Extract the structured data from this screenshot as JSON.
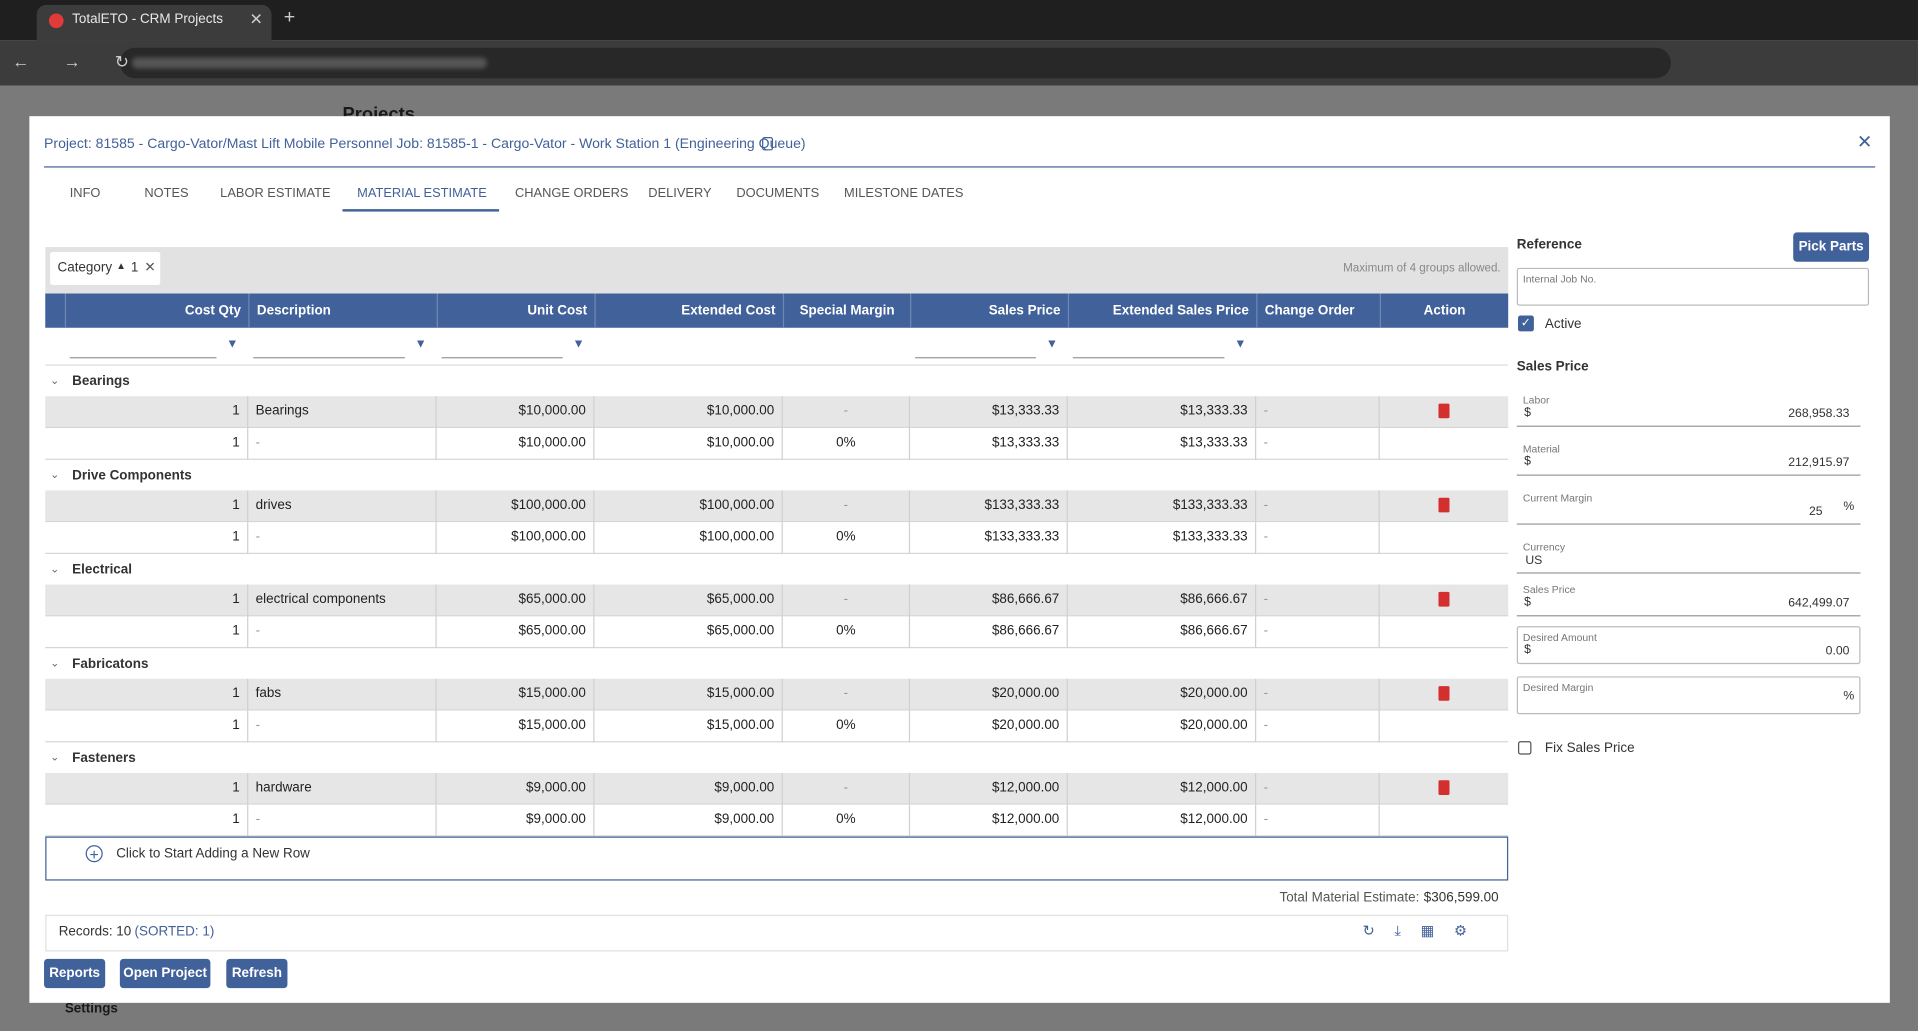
{
  "browser": {
    "tab_title": "TotalETO - CRM Projects"
  },
  "background": {
    "page_title": "Projects",
    "settings": "Settings"
  },
  "dialog": {
    "title": "Project: 81585 - Cargo-Vator/Mast Lift Mobile Personnel Job: 81585-1 - Cargo-Vator - Work Station 1 (Engineering Queue)",
    "tabs": [
      "INFO",
      "NOTES",
      "LABOR ESTIMATE",
      "MATERIAL ESTIMATE",
      "CHANGE ORDERS",
      "DELIVERY",
      "DOCUMENTS",
      "MILESTONE DATES"
    ],
    "active_tab": 3,
    "group_chip": {
      "label": "Category",
      "count": "1"
    },
    "group_note": "Maximum of 4 groups allowed.",
    "table": {
      "columns": [
        "Cost Qty",
        "Description",
        "Unit Cost",
        "Extended Cost",
        "Special Margin",
        "Sales Price",
        "Extended Sales Price",
        "Change Order",
        "Action"
      ],
      "groups": [
        {
          "name": "Bearings",
          "rows": [
            [
              "1",
              "Bearings",
              "$10,000.00",
              "$10,000.00",
              "-",
              "$13,333.33",
              "$13,333.33",
              "-"
            ],
            [
              "1",
              "-",
              "$10,000.00",
              "$10,000.00",
              "0%",
              "$13,333.33",
              "$13,333.33",
              "-"
            ]
          ]
        },
        {
          "name": "Drive Components",
          "rows": [
            [
              "1",
              "drives",
              "$100,000.00",
              "$100,000.00",
              "-",
              "$133,333.33",
              "$133,333.33",
              "-"
            ],
            [
              "1",
              "-",
              "$100,000.00",
              "$100,000.00",
              "0%",
              "$133,333.33",
              "$133,333.33",
              "-"
            ]
          ]
        },
        {
          "name": "Electrical",
          "rows": [
            [
              "1",
              "electrical components",
              "$65,000.00",
              "$65,000.00",
              "-",
              "$86,666.67",
              "$86,666.67",
              "-"
            ],
            [
              "1",
              "-",
              "$65,000.00",
              "$65,000.00",
              "0%",
              "$86,666.67",
              "$86,666.67",
              "-"
            ]
          ]
        },
        {
          "name": "Fabricatons",
          "rows": [
            [
              "1",
              "fabs",
              "$15,000.00",
              "$15,000.00",
              "-",
              "$20,000.00",
              "$20,000.00",
              "-"
            ],
            [
              "1",
              "-",
              "$15,000.00",
              "$15,000.00",
              "0%",
              "$20,000.00",
              "$20,000.00",
              "-"
            ]
          ]
        },
        {
          "name": "Fasteners",
          "rows": [
            [
              "1",
              "hardware",
              "$9,000.00",
              "$9,000.00",
              "-",
              "$12,000.00",
              "$12,000.00",
              "-"
            ],
            [
              "1",
              "-",
              "$9,000.00",
              "$9,000.00",
              "0%",
              "$12,000.00",
              "$12,000.00",
              "-"
            ]
          ]
        }
      ]
    },
    "add_row": "Click to Start Adding a New Row",
    "total": {
      "label": "Total Material Estimate:",
      "value": "$306,599.00"
    },
    "footer": {
      "records": "Records: 10",
      "sorted": "(SORTED: 1)"
    },
    "buttons": [
      "Reports",
      "Open Project",
      "Refresh"
    ],
    "side": {
      "reference": "Reference",
      "pick_parts": "Pick Parts",
      "internal_job_label": "Internal Job No.",
      "active": "Active",
      "sales_price_heading": "Sales Price",
      "fields": [
        {
          "label": "Labor",
          "prefix": "$",
          "value": "268,958.33"
        },
        {
          "label": "Material",
          "prefix": "$",
          "value": "212,915.97"
        },
        {
          "label": "Current Margin",
          "value": "25",
          "suffix": "%"
        },
        {
          "label": "Currency",
          "text": "US"
        },
        {
          "label": "Sales Price",
          "prefix": "$",
          "value": "642,499.07"
        },
        {
          "label": "Desired Amount",
          "prefix": "$",
          "value": "0.00",
          "boxed": true
        },
        {
          "label": "Desired Margin",
          "suffix": "%",
          "boxed": true
        }
      ],
      "fix_sales_price": "Fix Sales Price"
    }
  }
}
